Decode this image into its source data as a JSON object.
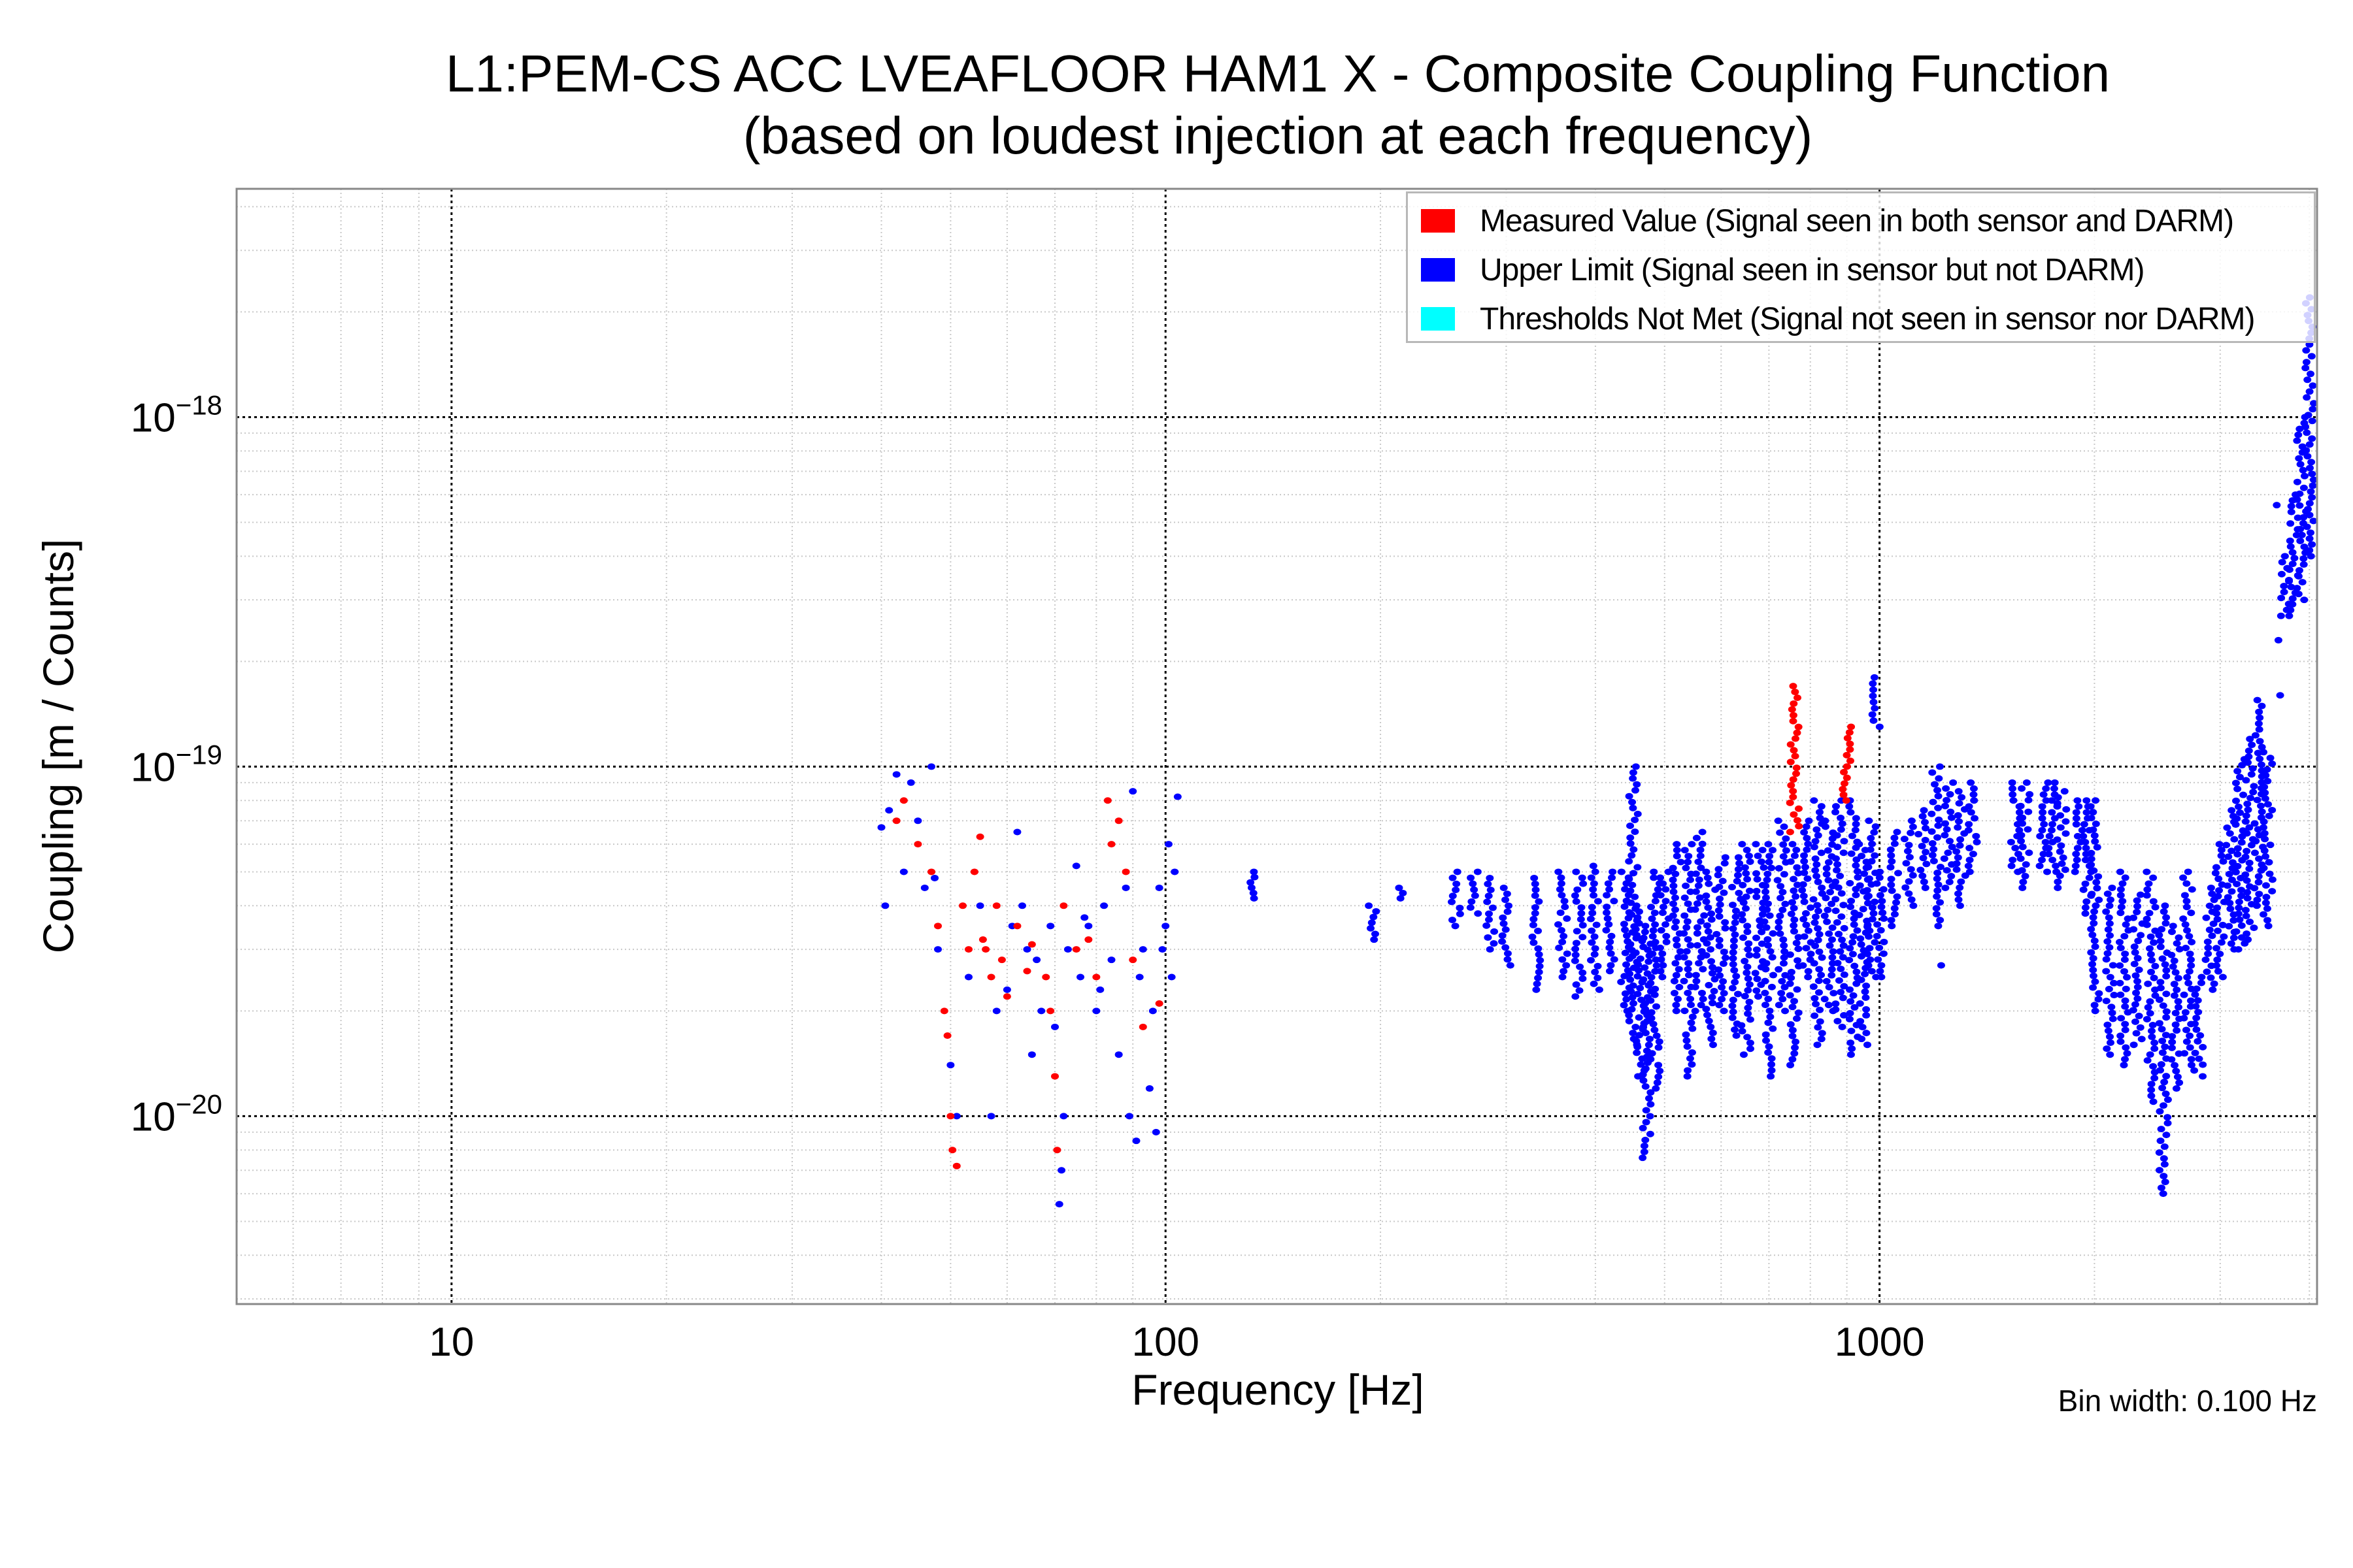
{
  "chart_data": {
    "type": "scatter",
    "title": [
      "L1:PEM-CS ACC LVEAFLOOR HAM1 X - Composite Coupling Function",
      "(based on loudest injection at each frequency)"
    ],
    "xlabel": "Frequency [Hz]",
    "ylabel": "Coupling [m / Counts]",
    "xscale": "log",
    "yscale": "log",
    "xlim": [
      5,
      4100
    ],
    "ylim": [
      2.9e-21,
      4.5e-18
    ],
    "grid": true,
    "legend_placement": "top-right",
    "note": "Bin width: 0.100 Hz",
    "x_ticks": [
      {
        "value": 10,
        "label": "10"
      },
      {
        "value": 100,
        "label": "100"
      },
      {
        "value": 1000,
        "label": "1000"
      }
    ],
    "y_ticks": [
      {
        "value": 1e-18,
        "base": "10",
        "exp": "−18"
      },
      {
        "value": 1e-19,
        "base": "10",
        "exp": "−19"
      },
      {
        "value": 1e-20,
        "base": "10",
        "exp": "−20"
      }
    ],
    "legend": [
      {
        "label": "Measured Value (Signal seen in both sensor and DARM)",
        "color": "#ff0000"
      },
      {
        "label": "Upper Limit (Signal seen in sensor but not DARM)",
        "color": "#0000ff"
      },
      {
        "label": "Thresholds Not Met (Signal not seen in sensor nor DARM)",
        "color": "#00ffff"
      }
    ],
    "series": [
      {
        "name": "Measured Value",
        "color": "#ff0000",
        "points": [
          [
            42,
            7e-20
          ],
          [
            43,
            8e-20
          ],
          [
            45,
            6e-20
          ],
          [
            47,
            5e-20
          ],
          [
            48,
            3.5e-20
          ],
          [
            49,
            2e-20
          ],
          [
            49.5,
            1.7e-20
          ],
          [
            50,
            1e-20
          ],
          [
            50.3,
            8e-21
          ],
          [
            51,
            7.2e-21
          ],
          [
            52,
            4e-20
          ],
          [
            53,
            3e-20
          ],
          [
            54,
            5e-20
          ],
          [
            55,
            6.3e-20
          ],
          [
            55.5,
            3.2e-20
          ],
          [
            56,
            3e-20
          ],
          [
            57,
            2.5e-20
          ],
          [
            58,
            4e-20
          ],
          [
            59,
            2.8e-20
          ],
          [
            60,
            2.2e-20
          ],
          [
            62,
            3.5e-20
          ],
          [
            64,
            2.6e-20
          ],
          [
            65,
            3.1e-20
          ],
          [
            68,
            2.5e-20
          ],
          [
            69,
            2e-20
          ],
          [
            70,
            1.3e-20
          ],
          [
            70.5,
            8e-21
          ],
          [
            72,
            4e-20
          ],
          [
            75,
            3e-20
          ],
          [
            78,
            3.2e-20
          ],
          [
            80,
            2.5e-20
          ],
          [
            83,
            8e-20
          ],
          [
            84,
            6e-20
          ],
          [
            86,
            7e-20
          ],
          [
            88,
            5e-20
          ],
          [
            90,
            2.8e-20
          ],
          [
            93,
            1.8e-20
          ],
          [
            98,
            2.1e-20
          ]
        ],
        "bands": [
          [
            760,
            6.5e-20,
            1.7e-19
          ],
          [
            900,
            8e-20,
            1.3e-19
          ]
        ]
      },
      {
        "name": "Upper Limit",
        "color": "#0000ff",
        "points": [
          [
            40,
            6.7e-20
          ],
          [
            40.5,
            4e-20
          ],
          [
            41,
            7.5e-20
          ],
          [
            42,
            9.5e-20
          ],
          [
            43,
            5e-20
          ],
          [
            44,
            9e-20
          ],
          [
            45,
            7e-20
          ],
          [
            46,
            4.5e-20
          ],
          [
            47,
            1e-19
          ],
          [
            47.5,
            4.8e-20
          ],
          [
            48,
            3e-20
          ],
          [
            50,
            1.4e-20
          ],
          [
            51,
            1e-20
          ],
          [
            53,
            2.5e-20
          ],
          [
            55,
            4e-20
          ],
          [
            57,
            1e-20
          ],
          [
            58,
            2e-20
          ],
          [
            60,
            2.3e-20
          ],
          [
            61,
            3.5e-20
          ],
          [
            62,
            6.5e-20
          ],
          [
            63,
            4e-20
          ],
          [
            64,
            3e-20
          ],
          [
            65,
            1.5e-20
          ],
          [
            66,
            2.8e-20
          ],
          [
            67,
            2e-20
          ],
          [
            69,
            3.5e-20
          ],
          [
            70,
            1.8e-20
          ],
          [
            71,
            5.6e-21
          ],
          [
            71.5,
            7e-21
          ],
          [
            72,
            1e-20
          ],
          [
            73,
            3e-20
          ],
          [
            75,
            5.2e-20
          ],
          [
            76,
            2.5e-20
          ],
          [
            77,
            3.7e-20
          ],
          [
            78,
            3.5e-20
          ],
          [
            80,
            2e-20
          ],
          [
            81,
            2.3e-20
          ],
          [
            82,
            4e-20
          ],
          [
            84,
            2.8e-20
          ],
          [
            86,
            1.5e-20
          ],
          [
            88,
            4.5e-20
          ],
          [
            89,
            1e-20
          ],
          [
            90,
            8.5e-20
          ],
          [
            91,
            8.5e-21
          ],
          [
            92,
            2.5e-20
          ],
          [
            93,
            3e-20
          ],
          [
            95,
            1.2e-20
          ],
          [
            96,
            2e-20
          ],
          [
            97,
            9e-21
          ],
          [
            98,
            4.5e-20
          ],
          [
            99,
            3e-20
          ],
          [
            100,
            3.5e-20
          ],
          [
            101,
            6e-20
          ],
          [
            102,
            2.5e-20
          ],
          [
            103,
            5e-20
          ],
          [
            104,
            8.2e-20
          ],
          [
            1220,
            2.7e-20
          ],
          [
            3600,
            5.6e-19
          ],
          [
            3620,
            2.3e-19
          ],
          [
            3640,
            1.6e-19
          ]
        ],
        "bands": [
          [
            133,
            4.2e-20,
            5e-20
          ],
          [
            195,
            3.2e-20,
            4e-20
          ],
          [
            215,
            4.2e-20,
            4.5e-20
          ],
          [
            255,
            3.5e-20,
            5e-20
          ],
          [
            270,
            3.8e-20,
            5e-20
          ],
          [
            285,
            3e-20,
            4.8e-20
          ],
          [
            300,
            2.7e-20,
            4.5e-20
          ],
          [
            330,
            2.3e-20,
            4.8e-20
          ],
          [
            360,
            2.5e-20,
            5e-20
          ],
          [
            380,
            2.2e-20,
            5e-20
          ],
          [
            400,
            2.3e-20,
            5.2e-20
          ],
          [
            420,
            2.6e-20,
            5e-20
          ],
          [
            440,
            2e-20,
            5e-20
          ],
          [
            452,
            1.6e-20,
            1e-19
          ],
          [
            462,
            1.3e-20,
            4e-20
          ],
          [
            472,
            7.6e-21,
            3.5e-20
          ],
          [
            485,
            1.2e-20,
            5e-20
          ],
          [
            500,
            2.5e-20,
            5e-20
          ],
          [
            520,
            2e-20,
            6e-20
          ],
          [
            540,
            1.3e-20,
            6e-20
          ],
          [
            560,
            2e-20,
            6.5e-20
          ],
          [
            580,
            1.6e-20,
            5e-20
          ],
          [
            600,
            2e-20,
            5.5e-20
          ],
          [
            630,
            1.7e-20,
            5.5e-20
          ],
          [
            650,
            1.5e-20,
            6e-20
          ],
          [
            680,
            2.2e-20,
            6e-20
          ],
          [
            700,
            1.3e-20,
            6e-20
          ],
          [
            730,
            2e-20,
            7e-20
          ],
          [
            760,
            1.4e-20,
            6e-20
          ],
          [
            790,
            2.5e-20,
            7e-20
          ],
          [
            820,
            1.6e-20,
            8e-20
          ],
          [
            850,
            2e-20,
            7e-20
          ],
          [
            880,
            1.8e-20,
            8e-20
          ],
          [
            920,
            1.5e-20,
            8e-20
          ],
          [
            950,
            1.6e-20,
            6e-20
          ],
          [
            975,
            2.5e-20,
            7e-20
          ],
          [
            990,
            1.3e-19,
            1.8e-19
          ],
          [
            1000,
            2.5e-20,
            5e-20
          ],
          [
            1050,
            3.5e-20,
            6.5e-20
          ],
          [
            1100,
            4e-20,
            7e-20
          ],
          [
            1150,
            4.5e-20,
            7.5e-20
          ],
          [
            1200,
            3.5e-20,
            1e-19
          ],
          [
            1250,
            4.5e-20,
            9e-20
          ],
          [
            1300,
            4e-20,
            8.5e-20
          ],
          [
            1350,
            5e-20,
            9e-20
          ],
          [
            1550,
            5e-20,
            9e-20
          ],
          [
            1600,
            4.5e-20,
            9e-20
          ],
          [
            1700,
            5e-20,
            9e-20
          ],
          [
            1750,
            5e-20,
            9e-20
          ],
          [
            1800,
            4.5e-20,
            8.5e-20
          ],
          [
            1900,
            5e-20,
            8e-20
          ],
          [
            1950,
            3.8e-20,
            8e-20
          ],
          [
            2000,
            2e-20,
            8e-20
          ],
          [
            2100,
            1.5e-20,
            4.5e-20
          ],
          [
            2200,
            1.4e-20,
            5e-20
          ],
          [
            2300,
            1.6e-20,
            4.3e-20
          ],
          [
            2400,
            1.1e-20,
            5e-20
          ],
          [
            2500,
            6e-21,
            4e-20
          ],
          [
            2600,
            1.2e-20,
            3.5e-20
          ],
          [
            2700,
            1.4e-20,
            5e-20
          ],
          [
            2800,
            1.3e-20,
            2.5e-20
          ],
          [
            2900,
            2.3e-20,
            4.5e-20
          ],
          [
            3000,
            2.5e-20,
            6e-20
          ],
          [
            3100,
            3e-20,
            7.5e-20
          ],
          [
            3200,
            3e-20,
            1.05e-19
          ],
          [
            3300,
            3.2e-20,
            1.2e-19
          ],
          [
            3400,
            4e-20,
            1.55e-19
          ],
          [
            3500,
            3.5e-20,
            1.1e-19
          ],
          [
            3700,
            2.7e-19,
            4e-19
          ],
          [
            3800,
            2.7e-19,
            6e-19
          ],
          [
            3900,
            3e-19,
            1e-18
          ],
          [
            4000,
            4e-19,
            2.2e-18
          ]
        ]
      },
      {
        "name": "Thresholds Not Met",
        "color": "#00ffff",
        "points": [],
        "bands": []
      }
    ]
  }
}
